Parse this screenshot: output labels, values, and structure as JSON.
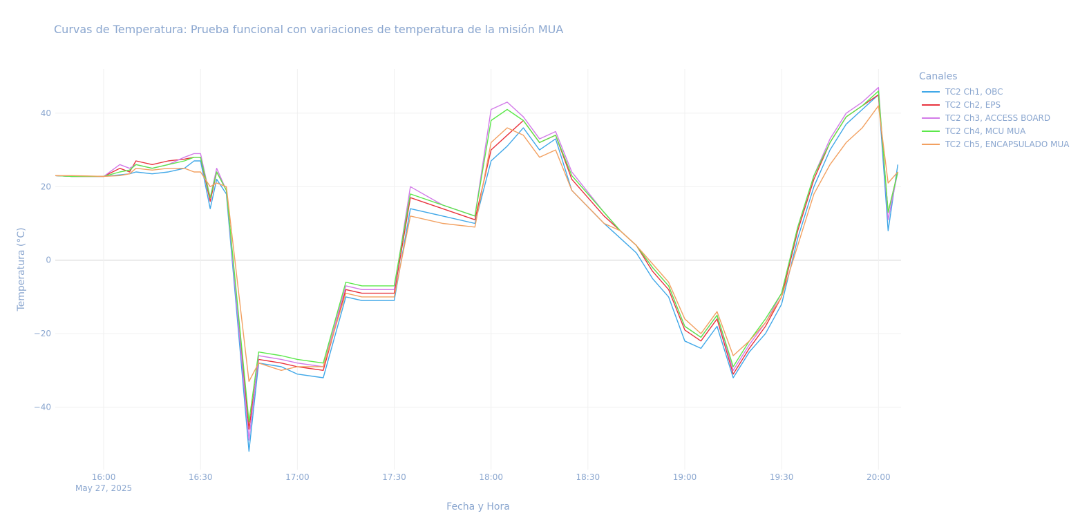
{
  "chart_data": {
    "type": "line",
    "title": "Curvas de Temperatura: Prueba funcional con variaciones de temperatura de la misión MUA",
    "xlabel": "Fecha y Hora",
    "ylabel": "Temperatura (°C)",
    "x_date_label": "May 27, 2025",
    "x_ticks": [
      "16:00",
      "16:30",
      "17:00",
      "17:30",
      "18:00",
      "18:30",
      "19:00",
      "19:30",
      "20:00"
    ],
    "y_ticks": [
      -40,
      -20,
      0,
      20,
      40
    ],
    "xlim": [
      "15:45",
      "20:07"
    ],
    "ylim": [
      -57,
      52
    ],
    "grid": true,
    "legend_title": "Canales",
    "legend_position": "top-right",
    "x": [
      "15:45",
      "15:50",
      "16:00",
      "16:05",
      "16:08",
      "16:10",
      "16:15",
      "16:20",
      "16:25",
      "16:28",
      "16:30",
      "16:33",
      "16:35",
      "16:38",
      "16:45",
      "16:48",
      "16:55",
      "17:00",
      "17:08",
      "17:15",
      "17:20",
      "17:30",
      "17:35",
      "17:45",
      "17:55",
      "18:00",
      "18:05",
      "18:10",
      "18:15",
      "18:20",
      "18:25",
      "18:35",
      "18:40",
      "18:45",
      "18:50",
      "18:55",
      "19:00",
      "19:05",
      "19:10",
      "19:15",
      "19:20",
      "19:25",
      "19:30",
      "19:35",
      "19:40",
      "19:45",
      "19:50",
      "19:55",
      "20:00",
      "20:03",
      "20:06"
    ],
    "series": [
      {
        "name": "TC2 Ch1, OBC",
        "color": "#3fa7e8",
        "values": [
          23,
          22.8,
          22.8,
          23.2,
          23.5,
          24,
          23.5,
          24,
          25,
          27,
          27,
          14,
          22,
          18,
          -52,
          -28,
          -29,
          -31,
          -32,
          -10,
          -11,
          -11,
          14,
          12,
          10,
          27,
          31,
          36,
          30,
          33,
          19,
          10,
          6,
          2,
          -5,
          -10,
          -22,
          -24,
          -18,
          -32,
          -25,
          -20,
          -12,
          6,
          20,
          30,
          37,
          41,
          45,
          8,
          26
        ]
      },
      {
        "name": "TC2 Ch2, EPS",
        "color": "#e8323c",
        "values": [
          23,
          22.8,
          22.8,
          25,
          24,
          27,
          26,
          27,
          27.5,
          28,
          28,
          16,
          24,
          19,
          -46,
          -27,
          -28,
          -29,
          -30,
          -8,
          -9,
          -9,
          17,
          14,
          11,
          30,
          34,
          38,
          32,
          34,
          22,
          12,
          8,
          4,
          -3,
          -8,
          -19,
          -22,
          -16,
          -31,
          -24,
          -18,
          -10,
          8,
          22,
          32,
          39,
          42,
          45,
          13,
          24
        ]
      },
      {
        "name": "TC2 Ch3, ACCESS BOARD",
        "color": "#d27ae8",
        "values": [
          23,
          22.8,
          22.8,
          26,
          25,
          26,
          25,
          26,
          28,
          29,
          29,
          17,
          25,
          19,
          -49,
          -26,
          -27,
          -28,
          -29,
          -7,
          -8,
          -8,
          20,
          15,
          12,
          41,
          43,
          39,
          33,
          35,
          24,
          13,
          8,
          4,
          -2,
          -7,
          -18,
          -21,
          -15,
          -30,
          -23,
          -17,
          -9,
          9,
          23,
          33,
          40,
          43,
          47,
          11,
          24
        ]
      },
      {
        "name": "TC2 Ch4, MCU MUA",
        "color": "#5be84a",
        "values": [
          23,
          22.8,
          22.8,
          24,
          24.5,
          26,
          25,
          26,
          27,
          28,
          28,
          17,
          24,
          19,
          -44,
          -25,
          -26,
          -27,
          -28,
          -6,
          -7,
          -7,
          18,
          15,
          12,
          38,
          41,
          38,
          32,
          34,
          23,
          13,
          8,
          4,
          -2,
          -7,
          -18,
          -21,
          -15,
          -29,
          -22,
          -16,
          -9,
          9,
          23,
          32,
          39,
          42,
          46,
          13,
          24
        ]
      },
      {
        "name": "TC2 Ch5, ENCAPSULADO MUA",
        "color": "#f2a060",
        "values": [
          23,
          23,
          22.8,
          23,
          23.5,
          25,
          24.5,
          25,
          25,
          24,
          24,
          20,
          21,
          20,
          -33,
          -28,
          -30,
          -29,
          -29,
          -9,
          -10,
          -10,
          12,
          10,
          9,
          32,
          36,
          34,
          28,
          30,
          19,
          10,
          8,
          4,
          -1,
          -6,
          -16,
          -20,
          -14,
          -26,
          -22,
          -17,
          -10,
          4,
          18,
          26,
          32,
          36,
          42,
          21,
          24
        ]
      }
    ]
  }
}
